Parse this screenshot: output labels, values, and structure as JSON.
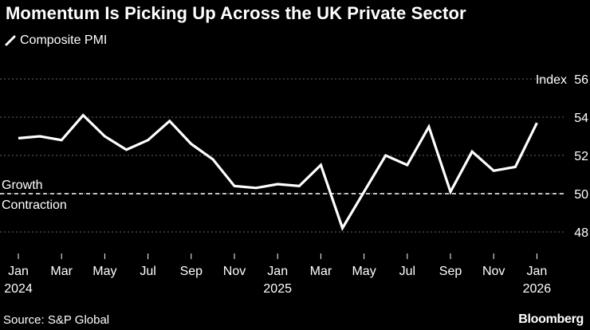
{
  "title": "Momentum Is Picking Up Across the UK Private Sector",
  "legend": {
    "label": "Composite PMI",
    "icon": "diagonal-line-icon"
  },
  "source": "Source: S&P Global",
  "brand": "Bloomberg",
  "colors": {
    "background": "#000000",
    "line": "#ffffff",
    "grid": "#666666",
    "threshold": "#ffffff"
  },
  "chart_data": {
    "type": "line",
    "title": "Momentum Is Picking Up Across the UK Private Sector",
    "ylabel": "Index",
    "ylim": [
      47,
      56
    ],
    "yticks": [
      48,
      50,
      52,
      54,
      56
    ],
    "grid": true,
    "legend_position": "top-left",
    "x_months": [
      "2024-01",
      "2024-02",
      "2024-03",
      "2024-04",
      "2024-05",
      "2024-06",
      "2024-07",
      "2024-08",
      "2024-09",
      "2024-10",
      "2024-11",
      "2024-12",
      "2025-01",
      "2025-02",
      "2025-03",
      "2025-04",
      "2025-05",
      "2025-06",
      "2025-07",
      "2025-08",
      "2025-09",
      "2025-10",
      "2025-11",
      "2025-12",
      "2026-01"
    ],
    "x_tick_labels": [
      {
        "month": "Jan",
        "year": "2024"
      },
      {
        "month": "Mar",
        "year": ""
      },
      {
        "month": "May",
        "year": ""
      },
      {
        "month": "Jul",
        "year": ""
      },
      {
        "month": "Sep",
        "year": ""
      },
      {
        "month": "Nov",
        "year": ""
      },
      {
        "month": "Jan",
        "year": "2025"
      },
      {
        "month": "Mar",
        "year": ""
      },
      {
        "month": "May",
        "year": ""
      },
      {
        "month": "Jul",
        "year": ""
      },
      {
        "month": "Sep",
        "year": ""
      },
      {
        "month": "Nov",
        "year": ""
      },
      {
        "month": "Jan",
        "year": "2026"
      }
    ],
    "series": [
      {
        "name": "Composite PMI",
        "values": [
          52.9,
          53.0,
          52.8,
          54.1,
          53.0,
          52.3,
          52.8,
          53.8,
          52.6,
          51.8,
          50.4,
          50.3,
          50.5,
          50.4,
          51.5,
          48.2,
          50.1,
          52.0,
          51.5,
          53.5,
          50.1,
          52.2,
          51.2,
          51.4,
          53.7
        ]
      }
    ],
    "threshold": {
      "value": 50,
      "label_above": "Growth",
      "label_below": "Contraction"
    }
  }
}
